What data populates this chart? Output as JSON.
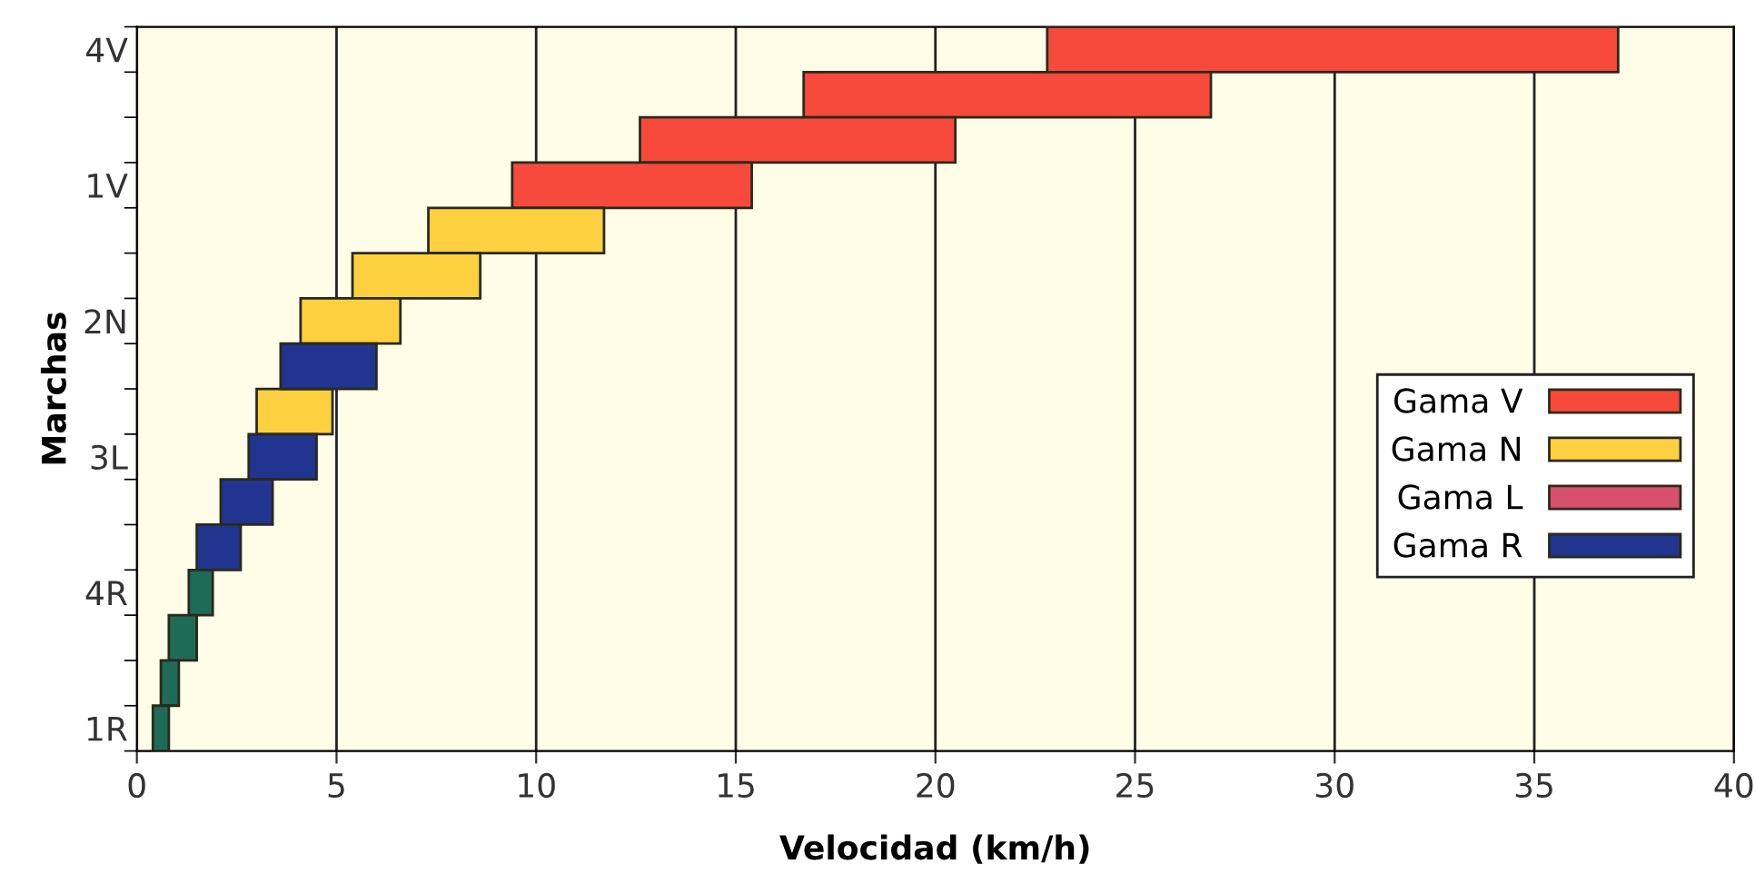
{
  "chart_data": {
    "type": "bar",
    "orientation": "horizontal",
    "xlabel": "Velocidad (km/h)",
    "ylabel": "Marchas",
    "categories": [
      "4V",
      null,
      null,
      "1V",
      null,
      null,
      "2N",
      null,
      null,
      "3L",
      null,
      null,
      "4R",
      null,
      null,
      "1R"
    ],
    "series": [
      {
        "name": "Gama V",
        "color": "#f84a3c",
        "values": [
          14.3,
          10.2,
          7.9,
          6.0,
          null,
          null,
          null,
          null,
          null,
          null,
          null,
          null,
          null,
          null,
          null,
          null
        ],
        "base": [
          22.8,
          16.7,
          12.6,
          9.4,
          null,
          null,
          null,
          null,
          null,
          null,
          null,
          null,
          null,
          null,
          null,
          null
        ]
      },
      {
        "name": "Gama N",
        "color": "#fdd03f",
        "values": [
          null,
          null,
          null,
          null,
          4.4,
          3.2,
          2.5,
          null,
          1.9,
          null,
          null,
          null,
          null,
          null,
          null,
          null
        ],
        "base": [
          null,
          null,
          null,
          null,
          7.3,
          5.4,
          4.1,
          null,
          3.0,
          null,
          null,
          null,
          null,
          null,
          null,
          null
        ]
      },
      {
        "name": "Gama L",
        "color": "#d9506e",
        "values": [
          null,
          null,
          null,
          null,
          null,
          null,
          null,
          null,
          null,
          null,
          null,
          null,
          null,
          null,
          null,
          null
        ],
        "base": [
          null,
          null,
          null,
          null,
          null,
          null,
          null,
          null,
          null,
          null,
          null,
          null,
          null,
          null,
          null,
          null
        ]
      },
      {
        "name": "Gama R",
        "color": "#21348f",
        "values": [
          null,
          null,
          null,
          null,
          null,
          null,
          null,
          2.4,
          null,
          1.7,
          1.3,
          1.1,
          null,
          null,
          null,
          null
        ],
        "base": [
          null,
          null,
          null,
          null,
          null,
          null,
          null,
          3.6,
          null,
          2.8,
          2.1,
          1.5,
          null,
          null,
          null,
          null
        ]
      },
      {
        "color": "#1e6b58",
        "values": [
          null,
          null,
          null,
          null,
          null,
          null,
          null,
          null,
          null,
          null,
          null,
          null,
          0.6,
          0.7,
          0.45,
          0.4
        ],
        "base": [
          null,
          null,
          null,
          null,
          null,
          null,
          null,
          null,
          null,
          null,
          null,
          null,
          1.3,
          0.8,
          0.6,
          0.4
        ]
      }
    ],
    "xlim": [
      0,
      40
    ],
    "xticks": [
      0,
      5,
      10,
      15,
      20,
      25,
      30,
      35,
      40
    ],
    "grid": "x",
    "legend": "right"
  }
}
